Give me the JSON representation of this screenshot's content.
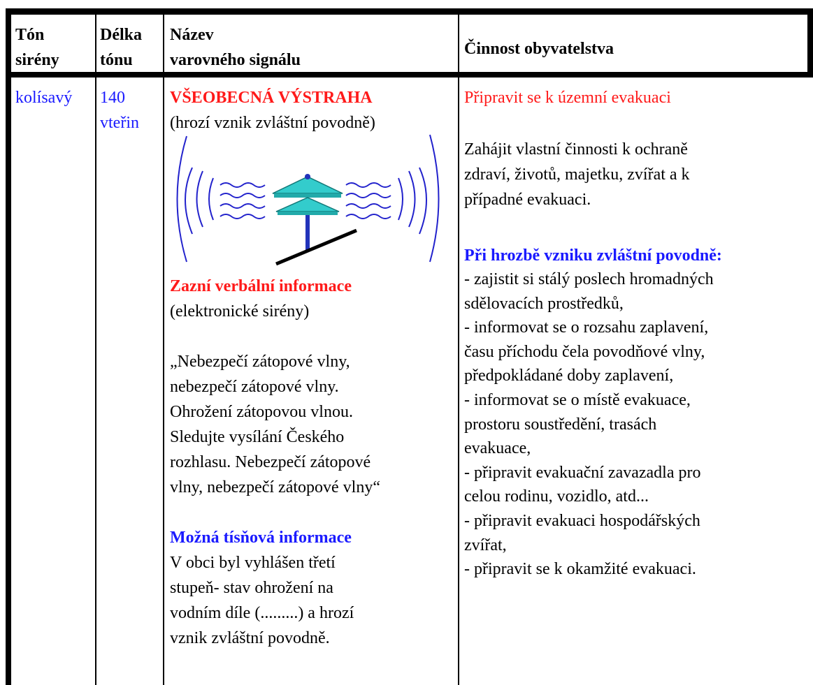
{
  "header": {
    "cells": [
      [
        "Tón",
        "sirény"
      ],
      [
        "Délka",
        "tónu"
      ],
      [
        "Název",
        "varovného signálu"
      ],
      [
        "Činnost obyvatelstva"
      ]
    ]
  },
  "rows": [
    {
      "tone": "kolísavý",
      "duration": [
        "140",
        "vteřin"
      ],
      "signal": {
        "title": "VŠEOBECNÁ VÝSTRAHA",
        "subtitle": "(hrozí vznik zvláštní povodně)",
        "verbal_heading": "Zazní verbální informace",
        "verbal_note": "(elektronické sirény)",
        "quote": [
          "„Nebezpečí zátopové vlny,",
          "nebezpečí zátopové vlny.",
          "Ohrožení zátopovou vlnou.",
          "Sledujte vysílání Českého",
          "rozhlasu. Nebezpečí zátopové",
          "vlny, nebezpečí zátopové vlny“"
        ],
        "emergency_heading": "Možná tísňová informace",
        "emergency": [
          "V obci byl vyhlášen třetí",
          "stupeň- stav ohrožení na",
          "vodním díle (.........) a hrozí",
          "vznik zvláštní povodně."
        ]
      },
      "action": {
        "heading": "Připravit se k územní evakuaci",
        "intro": [
          "Zahájit vlastní činnosti k ochraně",
          "zdraví, životů, majetku, zvířat a k",
          "případné evakuaci."
        ],
        "threat_heading": "Při hrozbě vzniku zvláštní povodně:",
        "steps": [
          "- zajistit si stálý poslech hromadných",
          "sdělovacích prostředků,",
          "- informovat se o rozsahu zaplavení,",
          "času příchodu čela povodňové vlny,",
          "předpokládané doby zaplavení,",
          "- informovat se o místě evakuace,",
          "prostoru soustředění, trasách",
          "evakuace,",
          "- připravit evakuační zavazadla pro",
          "celou rodinu, vozidlo, atd...",
          "- připravit evakuaci hospodářských",
          "zvířat,",
          "- připravit se k okamžité evakuaci."
        ]
      }
    }
  ]
}
